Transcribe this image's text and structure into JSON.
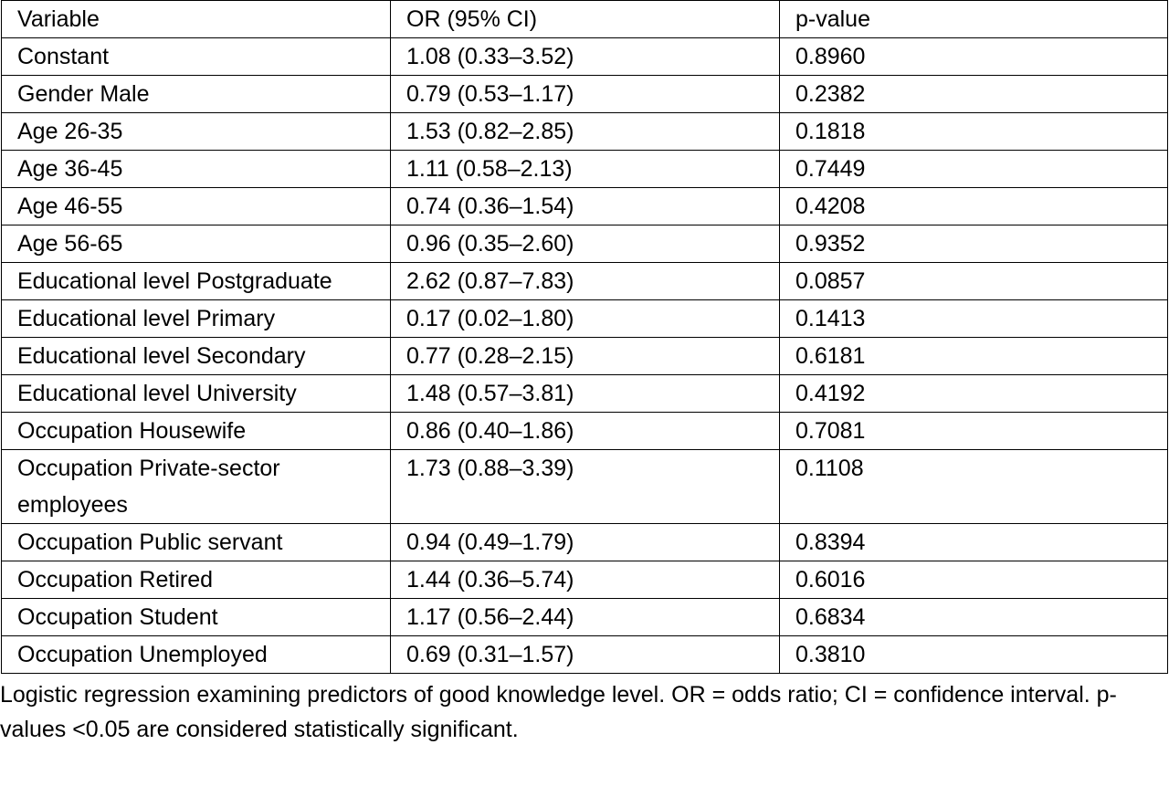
{
  "table": {
    "header": [
      "Variable",
      "OR (95% CI)",
      "p-value"
    ],
    "rows": [
      [
        "Constant",
        "1.08 (0.33–3.52)",
        "0.8960"
      ],
      [
        "Gender Male",
        "0.79 (0.53–1.17)",
        "0.2382"
      ],
      [
        "Age 26-35",
        "1.53 (0.82–2.85)",
        "0.1818"
      ],
      [
        "Age 36-45",
        "1.11 (0.58–2.13)",
        "0.7449"
      ],
      [
        "Age 46-55",
        "0.74 (0.36–1.54)",
        "0.4208"
      ],
      [
        "Age 56-65",
        "0.96 (0.35–2.60)",
        "0.9352"
      ],
      [
        "Educational level Postgraduate",
        "2.62 (0.87–7.83)",
        "0.0857"
      ],
      [
        "Educational level Primary",
        "0.17 (0.02–1.80)",
        "0.1413"
      ],
      [
        "Educational level Secondary",
        "0.77 (0.28–2.15)",
        "0.6181"
      ],
      [
        "Educational level University",
        "1.48 (0.57–3.81)",
        "0.4192"
      ],
      [
        "Occupation Housewife",
        "0.86 (0.40–1.86)",
        "0.7081"
      ],
      [
        "Occupation Private-sector employees",
        "1.73 (0.88–3.39)",
        "0.1108"
      ],
      [
        "Occupation Public servant",
        "0.94 (0.49–1.79)",
        "0.8394"
      ],
      [
        "Occupation Retired",
        "1.44 (0.36–5.74)",
        "0.6016"
      ],
      [
        "Occupation Student",
        "1.17 (0.56–2.44)",
        "0.6834"
      ],
      [
        "Occupation Unemployed",
        "0.69 (0.31–1.57)",
        "0.3810"
      ]
    ]
  },
  "caption": "Logistic regression examining predictors of good knowledge level. OR = odds ratio; CI = confidence interval. p-values <0.05 are considered statistically significant."
}
